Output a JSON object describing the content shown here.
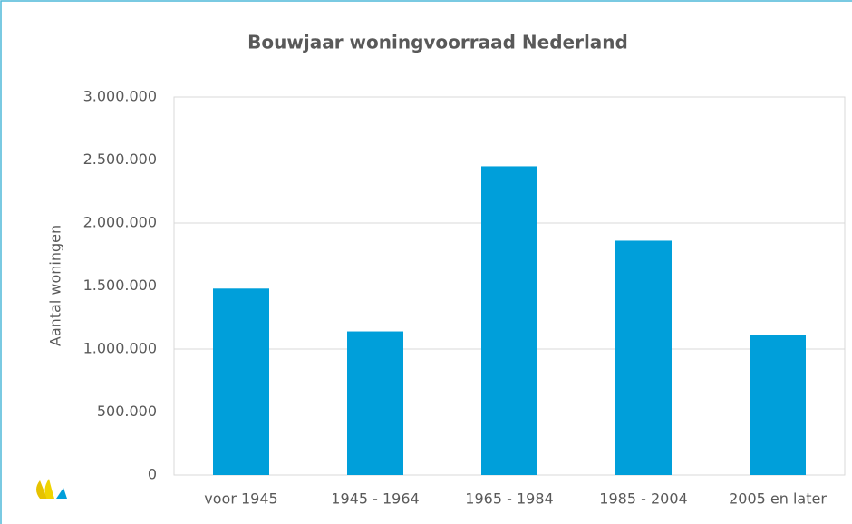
{
  "chart_data": {
    "type": "bar",
    "title": "Bouwjaar woningvoorraad Nederland",
    "y_label": "Aantal woningen",
    "categories": [
      "voor 1945",
      "1945 - 1964",
      "1965 - 1984",
      "1985 - 2004",
      "2005 en later"
    ],
    "values": [
      1480000,
      1140000,
      2450000,
      1860000,
      1110000
    ],
    "color": "#009fda",
    "ylim": [
      0,
      3000000
    ],
    "yticks": [
      0,
      {
        "value": 500000,
        "label": "500.000"
      },
      {
        "value": 1000000,
        "label": "1.000.000"
      },
      {
        "value": 1500000,
        "label": "1.500.000"
      },
      {
        "value": 2000000,
        "label": "2.000.000"
      },
      {
        "value": 2500000,
        "label": "2.500.000"
      },
      {
        "value": 3000000,
        "label": "3.000.000"
      }
    ],
    "grid": true
  }
}
